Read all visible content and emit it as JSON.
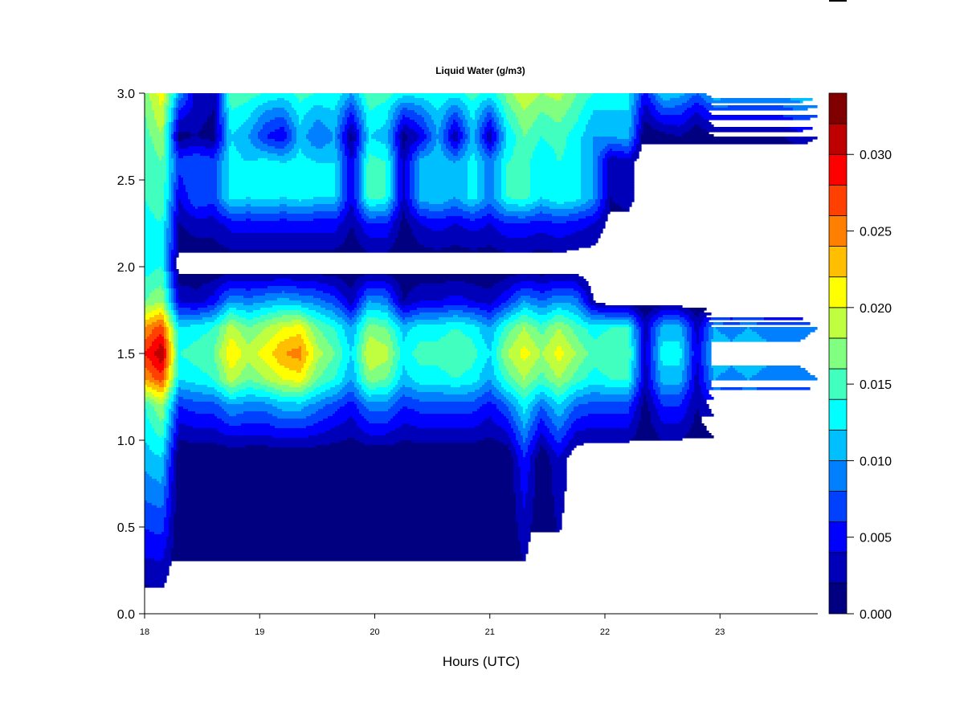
{
  "chart_data": {
    "type": "heatmap",
    "style": "filled-contour",
    "title": "Liquid Water (g/m3)",
    "xlabel": "Hours (UTC)",
    "ylabel": "",
    "xlim": [
      18.0,
      23.85
    ],
    "ylim": [
      0.0,
      3.0
    ],
    "x_ticks": [
      "18",
      "19",
      "20",
      "21",
      "22",
      "23"
    ],
    "y_ticks": [
      "0.0",
      "0.5",
      "1.0",
      "1.5",
      "2.0",
      "2.5",
      "3.0"
    ],
    "colorbar": {
      "levels_min": 0.0,
      "levels_max": 0.034,
      "level_step": 0.002,
      "tick_labels": [
        "0.000",
        "0.005",
        "0.010",
        "0.015",
        "0.020",
        "0.025",
        "0.030"
      ],
      "colors": [
        "#000080",
        "#0000B8",
        "#0000FF",
        "#0040FF",
        "#0080FF",
        "#00BFFF",
        "#00FFFF",
        "#40FFBF",
        "#80FF80",
        "#BFFF40",
        "#FFFF00",
        "#FFBF00",
        "#FF8000",
        "#FF4000",
        "#FF0000",
        "#BF0000",
        "#800000"
      ]
    },
    "x": [
      18.0,
      18.15,
      18.3,
      18.45,
      18.6,
      18.75,
      18.9,
      19.05,
      19.2,
      19.35,
      19.5,
      19.65,
      19.8,
      19.95,
      20.1,
      20.25,
      20.4,
      20.55,
      20.7,
      20.85,
      21.0,
      21.15,
      21.3,
      21.45,
      21.6,
      21.75,
      21.9,
      22.05,
      22.2,
      22.35,
      22.5,
      22.65,
      22.8,
      22.95,
      23.1,
      23.25,
      23.4,
      23.55,
      23.7,
      23.85
    ],
    "y": [
      0.0,
      0.9,
      1.2,
      1.35,
      1.5,
      1.65,
      1.8,
      2.0,
      2.25,
      2.4,
      2.6,
      2.75,
      2.9,
      3.0
    ],
    "z_by_x": [
      [
        0,
        0.011,
        0.014,
        0.024,
        0.028,
        0.024,
        0.016,
        0.013,
        0.013,
        0.014,
        0.014,
        0.015,
        0.016,
        0.017
      ],
      [
        0,
        0.012,
        0.018,
        0.027,
        0.032,
        0.027,
        0.018,
        0.014,
        0.014,
        0.016,
        0.016,
        0.018,
        0.02,
        0.021
      ],
      [
        0,
        0,
        0.006,
        0.012,
        0.014,
        0.012,
        0.004,
        0,
        0.002,
        0.004,
        0.007,
        0.001,
        0.006,
        0.01
      ],
      [
        0,
        0,
        0.007,
        0.013,
        0.015,
        0.013,
        0.003,
        0,
        0.003,
        0.008,
        0.008,
        0.002,
        0.003,
        0.003
      ],
      [
        0,
        0,
        0.007,
        0.014,
        0.016,
        0.014,
        0.005,
        0,
        0.003,
        0.007,
        0.007,
        0.001,
        0.002,
        0.002
      ],
      [
        0,
        0,
        0.01,
        0.019,
        0.022,
        0.019,
        0.01,
        0,
        0.005,
        0.013,
        0.013,
        0.012,
        0.014,
        0.016
      ],
      [
        0,
        0,
        0.009,
        0.016,
        0.019,
        0.016,
        0.009,
        0,
        0.005,
        0.012,
        0.012,
        0.01,
        0.013,
        0.015
      ],
      [
        0,
        0,
        0.009,
        0.018,
        0.021,
        0.018,
        0.01,
        0,
        0.005,
        0.013,
        0.013,
        0.006,
        0.01,
        0.014
      ],
      [
        0,
        0,
        0.011,
        0.02,
        0.024,
        0.02,
        0.011,
        0,
        0.005,
        0.012,
        0.012,
        0.004,
        0.009,
        0.013
      ],
      [
        0,
        0,
        0.011,
        0.021,
        0.025,
        0.021,
        0.01,
        0,
        0.005,
        0.013,
        0.013,
        0.011,
        0.013,
        0.015
      ],
      [
        0,
        0,
        0.009,
        0.016,
        0.019,
        0.016,
        0.009,
        0,
        0.005,
        0.012,
        0.012,
        0.008,
        0.011,
        0.014
      ],
      [
        0,
        0,
        0.007,
        0.014,
        0.016,
        0.014,
        0.007,
        0,
        0.005,
        0.012,
        0.012,
        0.01,
        0.012,
        0.014
      ],
      [
        0,
        0,
        0.005,
        0.01,
        0.012,
        0.01,
        0.003,
        0,
        0.002,
        0.004,
        0.004,
        0.001,
        0.006,
        0.01
      ],
      [
        0,
        0,
        0.009,
        0.017,
        0.02,
        0.017,
        0.01,
        0,
        0.006,
        0.015,
        0.015,
        0.012,
        0.014,
        0.016
      ],
      [
        0,
        0,
        0.009,
        0.016,
        0.019,
        0.016,
        0.009,
        0,
        0.006,
        0.014,
        0.014,
        0.011,
        0.013,
        0.015
      ],
      [
        0,
        0,
        0.006,
        0.011,
        0.013,
        0.011,
        0.002,
        0,
        0.001,
        0.003,
        0.003,
        0.001,
        0.007,
        0.013
      ],
      [
        0,
        0,
        0.007,
        0.013,
        0.015,
        0.013,
        0.004,
        0,
        0.004,
        0.011,
        0.011,
        0.004,
        0.009,
        0.013
      ],
      [
        0,
        0,
        0.007,
        0.013,
        0.015,
        0.013,
        0.004,
        0,
        0.005,
        0.012,
        0.012,
        0.01,
        0.012,
        0.014
      ],
      [
        0,
        0,
        0.007,
        0.014,
        0.016,
        0.014,
        0.005,
        0,
        0.004,
        0.01,
        0.01,
        0.002,
        0.008,
        0.013
      ],
      [
        0,
        0,
        0.007,
        0.013,
        0.015,
        0.013,
        0.004,
        0,
        0.005,
        0.013,
        0.013,
        0.011,
        0.013,
        0.015
      ],
      [
        0,
        0,
        0.005,
        0.01,
        0.012,
        0.01,
        0.003,
        0,
        0.004,
        0.009,
        0.009,
        0.002,
        0.008,
        0.013
      ],
      [
        0,
        0,
        0.008,
        0.015,
        0.018,
        0.015,
        0.006,
        0,
        0.006,
        0.014,
        0.014,
        0.012,
        0.015,
        0.017
      ],
      [
        0,
        0.006,
        0.013,
        0.018,
        0.021,
        0.018,
        0.01,
        0,
        0.006,
        0.015,
        0.015,
        0.016,
        0.018,
        0.02
      ],
      [
        0,
        0,
        0.008,
        0.015,
        0.018,
        0.015,
        0.008,
        0,
        0.005,
        0.012,
        0.012,
        0.014,
        0.016,
        0.018
      ],
      [
        0,
        0.004,
        0.012,
        0.018,
        0.021,
        0.018,
        0.01,
        0,
        0.006,
        0.014,
        0.014,
        0.015,
        0.017,
        0.019
      ],
      [
        0,
        0,
        0.008,
        0.015,
        0.018,
        0.015,
        0.009,
        0,
        0.005,
        0.013,
        0.013,
        0.013,
        0.015,
        0.016
      ],
      [
        0,
        0,
        0.007,
        0.013,
        0.015,
        0.013,
        0.002,
        0,
        0.004,
        0.01,
        0.01,
        0.01,
        0.012,
        0.014
      ],
      [
        0,
        0,
        0.007,
        0.014,
        0.016,
        0.014,
        0,
        0,
        0.001,
        0.002,
        0.002,
        0.01,
        0.012,
        0.013
      ],
      [
        0,
        0,
        0.007,
        0.014,
        0.016,
        0.014,
        0,
        0,
        0.001,
        0.003,
        0.003,
        0.011,
        0.012,
        0.013
      ],
      [
        0,
        0,
        0.001,
        0.003,
        0.003,
        0.003,
        0,
        0,
        0,
        0,
        0,
        0,
        0.003,
        0.005
      ],
      [
        0,
        0,
        0.006,
        0.011,
        0.013,
        0.011,
        0,
        0,
        0,
        0,
        0,
        0.001,
        0.007,
        0.012
      ],
      [
        0,
        0,
        0.006,
        0.011,
        0.013,
        0.011,
        0,
        0,
        0,
        0,
        0,
        0.002,
        0.007,
        0.011
      ],
      [
        0,
        0,
        0.002,
        0.003,
        0.004,
        0.003,
        0,
        0,
        0,
        0,
        0,
        0,
        0.004,
        0.008
      ],
      [
        0,
        0,
        0.005,
        0.01,
        0.012,
        0.01,
        0,
        0,
        0,
        0,
        0,
        0.002,
        0.007,
        0.012
      ],
      [
        0,
        0,
        0.005,
        0.009,
        0.011,
        0.009,
        0,
        0,
        0,
        0,
        0,
        0.002,
        0.007,
        0.011
      ],
      [
        0,
        0,
        0.005,
        0.01,
        0.012,
        0.01,
        0,
        0,
        0,
        0,
        0,
        0.002,
        0.007,
        0.011
      ],
      [
        0,
        0,
        0.005,
        0.009,
        0.011,
        0.009,
        0,
        0,
        0,
        0,
        0,
        0.002,
        0.007,
        0.011
      ],
      [
        0,
        0,
        0.005,
        0.009,
        0.011,
        0.009,
        0,
        0,
        0,
        0,
        0,
        0.002,
        0.007,
        0.011
      ],
      [
        0,
        0,
        0.005,
        0.009,
        0.011,
        0.009,
        0,
        0,
        0,
        0,
        0,
        0.003,
        0.008,
        0.012
      ],
      [
        0,
        0,
        0.005,
        0.01,
        0.012,
        0.01,
        0,
        0,
        0,
        0,
        0,
        0.002,
        0.007,
        0.011
      ]
    ]
  }
}
